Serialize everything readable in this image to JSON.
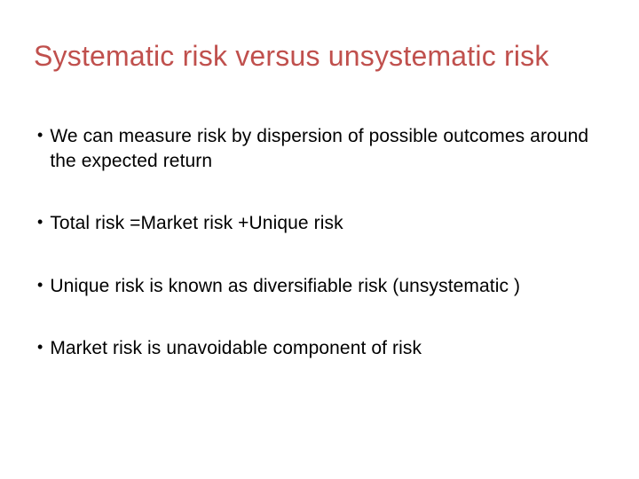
{
  "slide": {
    "title": "Systematic risk versus unsystematic risk",
    "title_color": "#c0504d",
    "title_fontsize": 32,
    "background_color": "#ffffff",
    "body_color": "#000000",
    "body_fontsize": 21,
    "bullet_marker": "•",
    "bullets": [
      {
        "text": "We can measure risk by dispersion of possible outcomes around the expected return"
      },
      {
        "text": "Total risk =Market risk +Unique risk"
      },
      {
        "text": "Unique risk is known as diversifiable risk (unsystematic )"
      },
      {
        "text": "Market risk is unavoidable component of risk"
      }
    ]
  }
}
